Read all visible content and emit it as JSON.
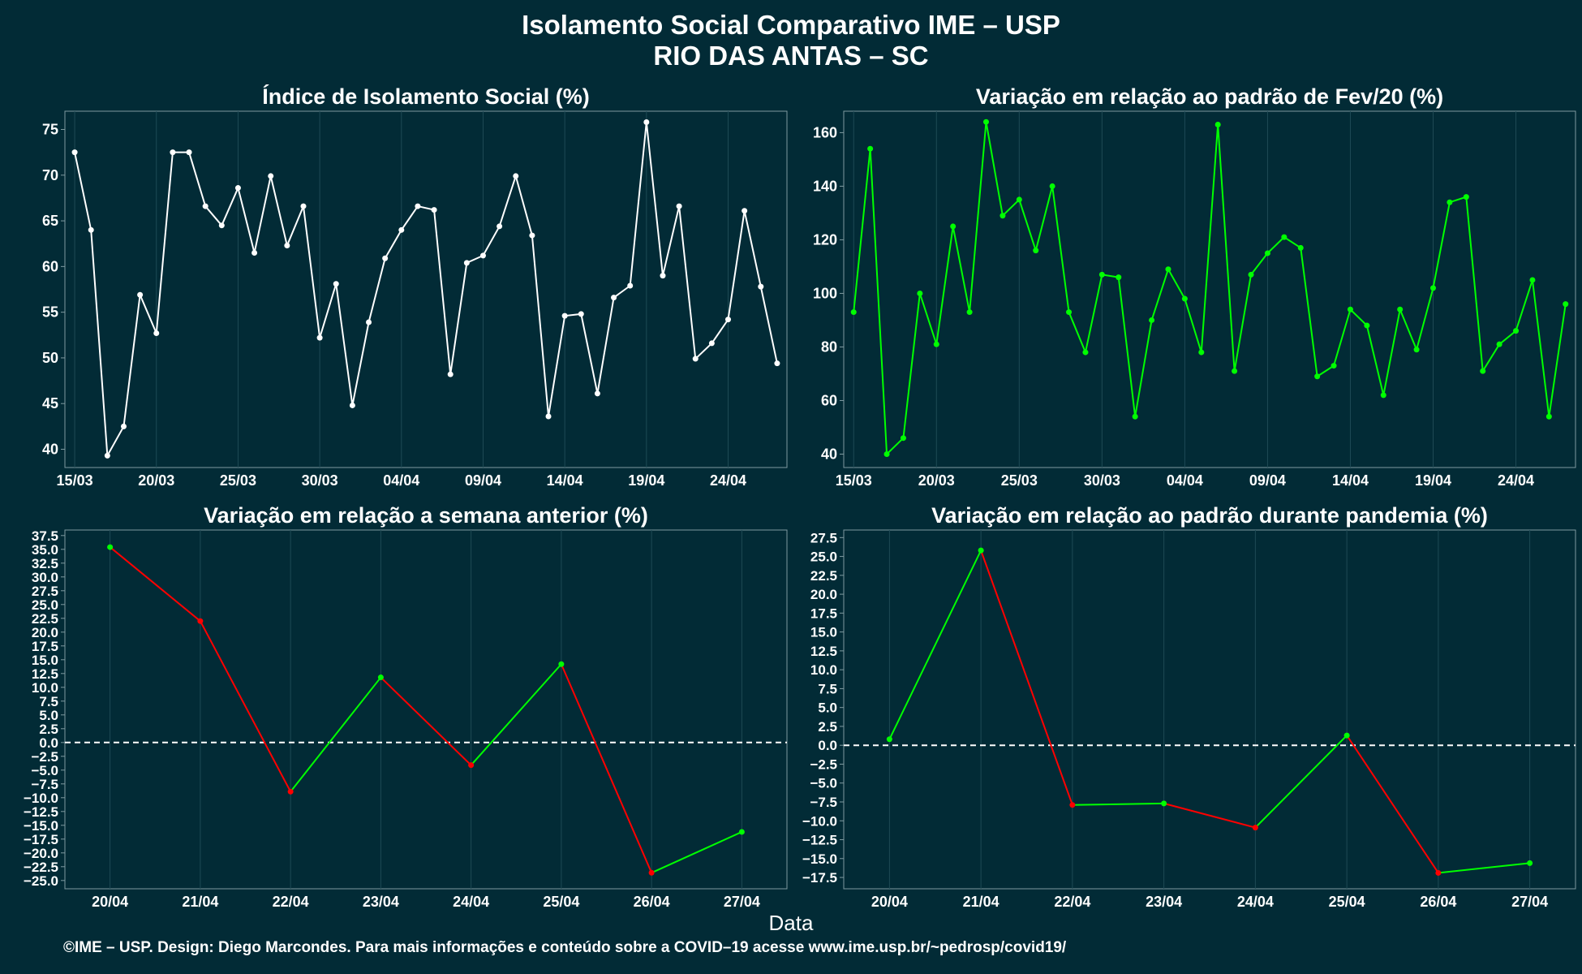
{
  "title": "Isolamento Social Comparativo IME – USP",
  "subtitle": "RIO DAS ANTAS – SC",
  "xlabel": "Data",
  "caption": "©IME – USP. Design: Diego Marcondes. Para mais informações e conteúdo sobre a COVID–19 acesse www.ime.usp.br/~pedrosp/covid19/",
  "colors": {
    "background": "#022b36",
    "white": "#ffffff",
    "green": "#00ff00",
    "red": "#ff0000",
    "grid": "#1e4a55"
  },
  "chart_data": [
    {
      "type": "line",
      "title": "Índice de Isolamento Social (%)",
      "x_start": "15/03",
      "x_tick_labels": [
        "15/03",
        "20/03",
        "25/03",
        "30/03",
        "04/04",
        "09/04",
        "14/04",
        "19/04",
        "24/04"
      ],
      "y_ticks": [
        40,
        45,
        50,
        55,
        60,
        65,
        70,
        75
      ],
      "ylim": [
        38,
        77
      ],
      "color": "white",
      "values": [
        72.5,
        64,
        39.3,
        42.5,
        56.9,
        52.7,
        72.5,
        72.5,
        66.6,
        64.5,
        68.6,
        61.5,
        69.9,
        62.3,
        66.6,
        52.2,
        58.1,
        44.8,
        53.9,
        60.9,
        64,
        66.6,
        66.2,
        48.2,
        60.4,
        61.2,
        64.4,
        69.9,
        63.4,
        43.6,
        54.6,
        54.8,
        46.1,
        56.6,
        57.9,
        75.8,
        59,
        66.6,
        49.9,
        51.6,
        54.2,
        66.1,
        57.8,
        49.4
      ]
    },
    {
      "type": "line",
      "title": "Variação em relação ao padrão de Fev/20 (%)",
      "x_start": "15/03",
      "x_tick_labels": [
        "15/03",
        "20/03",
        "25/03",
        "30/03",
        "04/04",
        "09/04",
        "14/04",
        "19/04",
        "24/04"
      ],
      "y_ticks": [
        40,
        60,
        80,
        100,
        120,
        140,
        160
      ],
      "ylim": [
        35,
        168
      ],
      "color": "green",
      "values": [
        93,
        154,
        40,
        46,
        100,
        81,
        125,
        93,
        164,
        129,
        135,
        116,
        140,
        93,
        78,
        107,
        106,
        54,
        90,
        109,
        98,
        78,
        163,
        71,
        107,
        115,
        121,
        117,
        69,
        73,
        94,
        88,
        62,
        94,
        79,
        102,
        134,
        136,
        71,
        81,
        86,
        105,
        54,
        96
      ]
    },
    {
      "type": "line",
      "title": "Variação em relação a semana anterior (%)",
      "categories": [
        "20/04",
        "21/04",
        "22/04",
        "23/04",
        "24/04",
        "25/04",
        "26/04",
        "27/04"
      ],
      "y_ticks": [
        37.5,
        35,
        32.5,
        30,
        27.5,
        25,
        22.5,
        20,
        17.5,
        15,
        12.5,
        10,
        7.5,
        5,
        2.5,
        0,
        -2.5,
        -5,
        -7.5,
        -10,
        -12.5,
        -15,
        -17.5,
        -20,
        -22.5,
        -25
      ],
      "y_tick_labels": [
        "37.5",
        "35.0",
        "32.5",
        "30.0",
        "27.5",
        "25.0",
        "22.5",
        "20.0",
        "17.5",
        "15.0",
        "12.5",
        "10.0",
        "7.5",
        "5.0",
        "2.5",
        "0.0",
        "−2.5",
        "−5.0",
        "−7.5",
        "−10.0",
        "−12.5",
        "−15.0",
        "−17.5",
        "−20.0",
        "−22.5",
        "−25.0"
      ],
      "ylim": [
        -26.5,
        38.5
      ],
      "reference_line": 0,
      "values": [
        35.4,
        22,
        -8.9,
        11.8,
        -4.1,
        14.2,
        -23.6,
        -16.2
      ],
      "colors_rule": "green when increasing, red when decreasing"
    },
    {
      "type": "line",
      "title": "Variação em relação ao padrão durante pandemia (%)",
      "categories": [
        "20/04",
        "21/04",
        "22/04",
        "23/04",
        "24/04",
        "25/04",
        "26/04",
        "27/04"
      ],
      "y_ticks": [
        27.5,
        25,
        22.5,
        20,
        17.5,
        15,
        12.5,
        10,
        7.5,
        5,
        2.5,
        0,
        -2.5,
        -5,
        -7.5,
        -10,
        -12.5,
        -15,
        -17.5
      ],
      "y_tick_labels": [
        "27.5",
        "25.0",
        "22.5",
        "20.0",
        "17.5",
        "15.0",
        "12.5",
        "10.0",
        "7.5",
        "5.0",
        "2.5",
        "0.0",
        "−2.5",
        "−5.0",
        "−7.5",
        "−10.0",
        "−12.5",
        "−15.0",
        "−17.5"
      ],
      "ylim": [
        -19,
        28.5
      ],
      "reference_line": 0,
      "values": [
        0.8,
        25.8,
        -7.9,
        -7.7,
        -10.9,
        1.3,
        -16.9,
        -15.6
      ],
      "colors_rule": "green when increasing, red when decreasing"
    }
  ]
}
